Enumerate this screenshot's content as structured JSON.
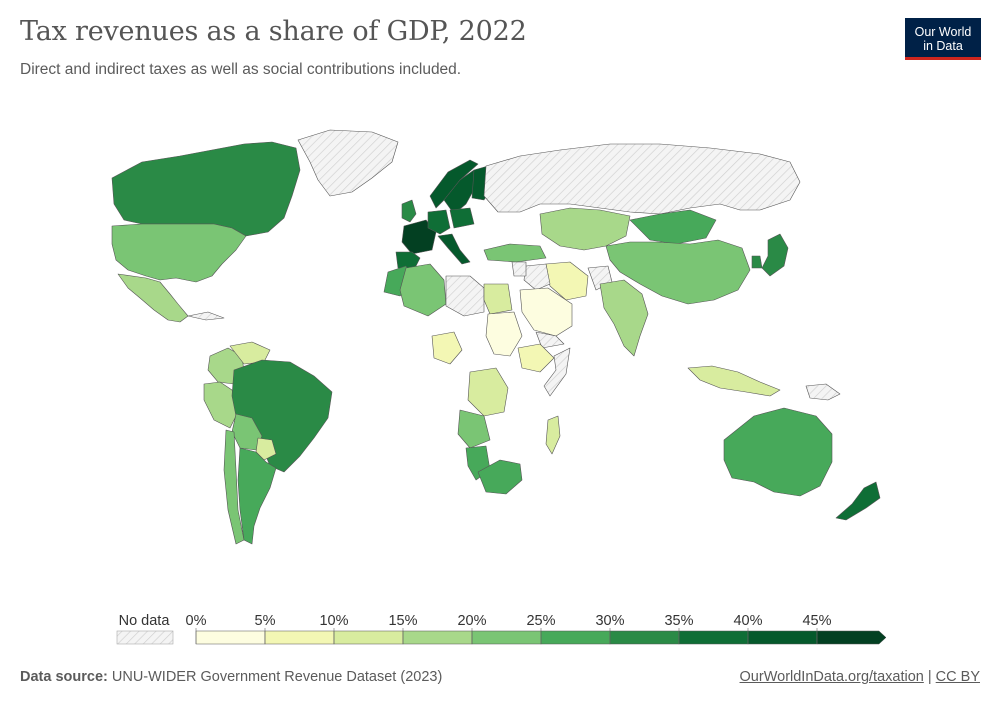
{
  "header": {
    "title": "Tax revenues as a share of GDP, 2022",
    "subtitle": "Direct and indirect taxes as well as social contributions included."
  },
  "logo": {
    "line1": "Our World",
    "line2": "in Data"
  },
  "legend": {
    "no_data_label": "No data",
    "ticks": [
      "0%",
      "5%",
      "10%",
      "15%",
      "20%",
      "25%",
      "30%",
      "35%",
      "40%",
      "45%"
    ],
    "bins": [
      {
        "from": 0,
        "to": 5,
        "color": "#fdfde0"
      },
      {
        "from": 5,
        "to": 10,
        "color": "#f3f7b4"
      },
      {
        "from": 10,
        "to": 15,
        "color": "#d8ec9f"
      },
      {
        "from": 15,
        "to": 20,
        "color": "#a8d88a"
      },
      {
        "from": 20,
        "to": 25,
        "color": "#7ac574"
      },
      {
        "from": 25,
        "to": 30,
        "color": "#47a95a"
      },
      {
        "from": 30,
        "to": 35,
        "color": "#2a8a46"
      },
      {
        "from": 35,
        "to": 40,
        "color": "#0f6e36"
      },
      {
        "from": 40,
        "to": 45,
        "color": "#05592c"
      },
      {
        "from": 45,
        "to": 50,
        "color": "#034022"
      }
    ],
    "no_data_color": "#eeeeee"
  },
  "chart_data": {
    "type": "choropleth",
    "title": "Tax revenues as a share of GDP, 2022",
    "unit": "% of GDP",
    "values": [
      {
        "country": "Canada",
        "value": 33
      },
      {
        "country": "United States",
        "value": 23
      },
      {
        "country": "Mexico",
        "value": 16
      },
      {
        "country": "Brazil",
        "value": 32
      },
      {
        "country": "Argentina",
        "value": 26
      },
      {
        "country": "Colombia",
        "value": 17
      },
      {
        "country": "Peru",
        "value": 16
      },
      {
        "country": "Chile",
        "value": 22
      },
      {
        "country": "Bolivia",
        "value": 21
      },
      {
        "country": "Venezuela",
        "value": 12
      },
      {
        "country": "Paraguay",
        "value": 10
      },
      {
        "country": "France",
        "value": 46
      },
      {
        "country": "Germany",
        "value": 39
      },
      {
        "country": "Italy",
        "value": 43
      },
      {
        "country": "Spain",
        "value": 37
      },
      {
        "country": "United Kingdom",
        "value": 33
      },
      {
        "country": "Sweden",
        "value": 42
      },
      {
        "country": "Norway",
        "value": 40
      },
      {
        "country": "Finland",
        "value": 42
      },
      {
        "country": "Poland",
        "value": 35
      },
      {
        "country": "Turkey",
        "value": 21
      },
      {
        "country": "Algeria",
        "value": 23
      },
      {
        "country": "Morocco",
        "value": 25
      },
      {
        "country": "Egypt",
        "value": 13
      },
      {
        "country": "Nigeria",
        "value": 6
      },
      {
        "country": "DR Congo",
        "value": 11
      },
      {
        "country": "Angola",
        "value": 20
      },
      {
        "country": "Namibia",
        "value": 28
      },
      {
        "country": "South Africa",
        "value": 27
      },
      {
        "country": "Ethiopia",
        "value": 6
      },
      {
        "country": "Sudan",
        "value": 3
      },
      {
        "country": "Saudi Arabia",
        "value": 4
      },
      {
        "country": "Iran",
        "value": 6
      },
      {
        "country": "Kazakhstan",
        "value": 18
      },
      {
        "country": "Mongolia",
        "value": 27
      },
      {
        "country": "China",
        "value": 20
      },
      {
        "country": "India",
        "value": 18
      },
      {
        "country": "Japan",
        "value": 34
      },
      {
        "country": "South Korea",
        "value": 32
      },
      {
        "country": "Indonesia",
        "value": 10
      },
      {
        "country": "Australia",
        "value": 29
      },
      {
        "country": "New Zealand",
        "value": 36
      },
      {
        "country": "Madagascar",
        "value": 10
      }
    ],
    "no_data": [
      "Russia",
      "Greenland",
      "Libya",
      "Somalia",
      "Yemen",
      "Iraq",
      "Syria",
      "Afghanistan",
      "Cuba",
      "Papua New Guinea"
    ]
  },
  "footer": {
    "source_label": "Data source:",
    "source_text": "UNU-WIDER Government Revenue Dataset (2023)",
    "link_text": "OurWorldInData.org/taxation",
    "separator": "|",
    "license": "CC BY"
  }
}
